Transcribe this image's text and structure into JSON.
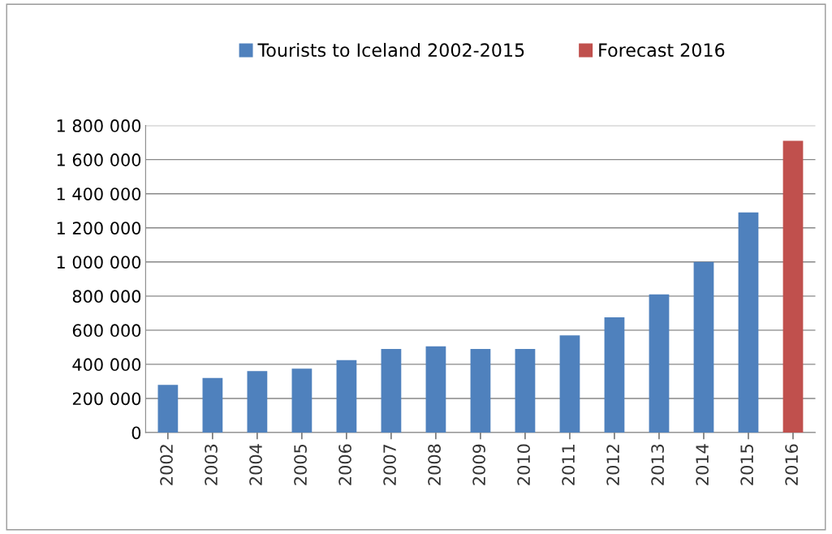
{
  "chart_data": {
    "type": "bar",
    "categories": [
      "2002",
      "2003",
      "2004",
      "2005",
      "2006",
      "2007",
      "2008",
      "2009",
      "2010",
      "2011",
      "2012",
      "2013",
      "2014",
      "2015",
      "2016"
    ],
    "series": [
      {
        "name": "Tourists to Iceland 2002-2015",
        "color": "#4f81bd",
        "values": [
          280000,
          320000,
          360000,
          375000,
          425000,
          490000,
          505000,
          490000,
          490000,
          570000,
          675000,
          810000,
          1000000,
          1290000,
          null
        ]
      },
      {
        "name": "Forecast 2016",
        "color": "#c0504d",
        "values": [
          null,
          null,
          null,
          null,
          null,
          null,
          null,
          null,
          null,
          null,
          null,
          null,
          null,
          null,
          1710000
        ]
      }
    ],
    "ylim": [
      0,
      1800000
    ],
    "yticks": [
      {
        "value": 0,
        "label": "0"
      },
      {
        "value": 200000,
        "label": "200 000"
      },
      {
        "value": 400000,
        "label": "400 000"
      },
      {
        "value": 600000,
        "label": "600 000"
      },
      {
        "value": 800000,
        "label": "800 000"
      },
      {
        "value": 1000000,
        "label": "1 000 000"
      },
      {
        "value": 1200000,
        "label": "1 200 000"
      },
      {
        "value": 1400000,
        "label": "1 400 000"
      },
      {
        "value": 1600000,
        "label": "1 600 000"
      },
      {
        "value": 1800000,
        "label": "1 800 000"
      }
    ],
    "grid": "y",
    "legend": "top"
  }
}
